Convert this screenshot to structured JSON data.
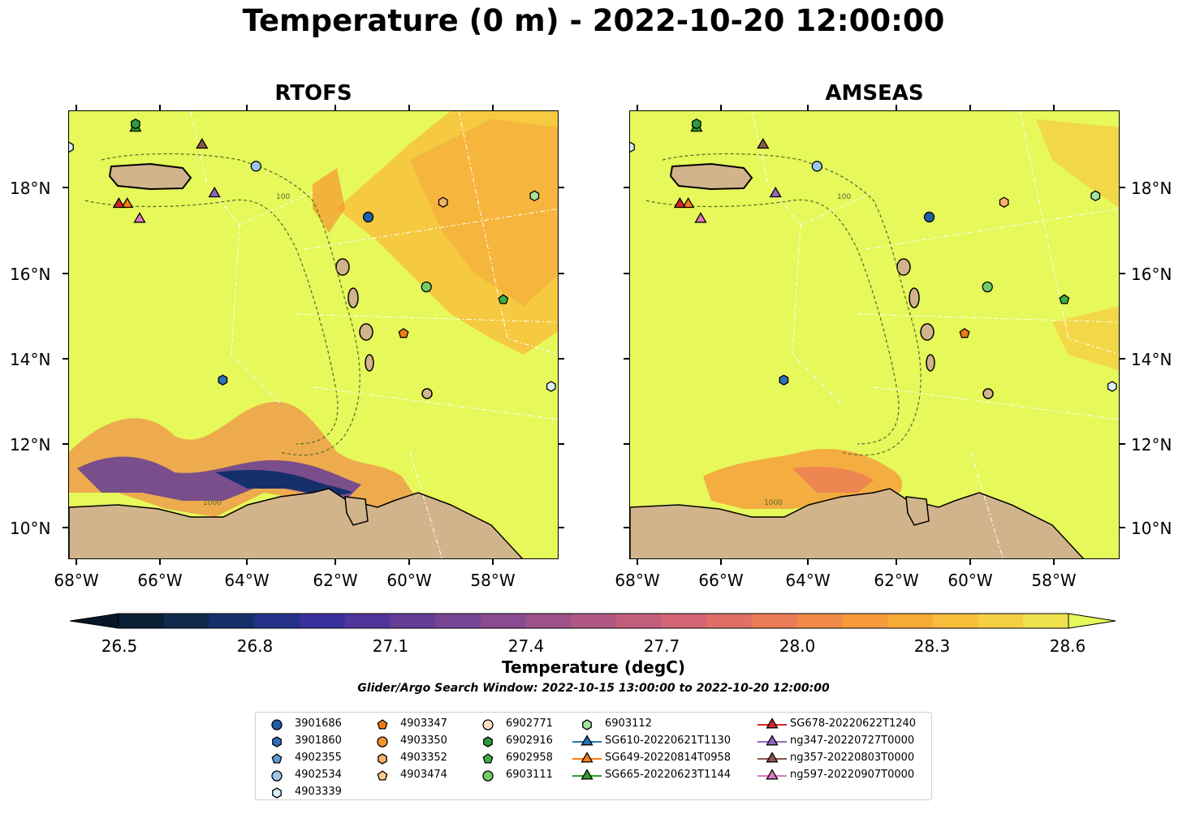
{
  "title": "Temperature (0 m) - 2022-10-20 12:00:00",
  "panels": [
    {
      "title": "RTOFS"
    },
    {
      "title": "AMSEAS"
    }
  ],
  "lat_labels": [
    "18°N",
    "16°N",
    "14°N",
    "12°N",
    "10°N"
  ],
  "lon_labels": [
    "68°W",
    "66°W",
    "64°W",
    "62°W",
    "60°W",
    "58°W"
  ],
  "contour_labels": [
    "100",
    "1000"
  ],
  "colorbar": {
    "label": "Temperature (degC)",
    "ticks": [
      "26.5",
      "26.8",
      "27.1",
      "27.4",
      "27.7",
      "28.0",
      "28.3",
      "28.6"
    ],
    "min": 26.5,
    "max": 28.6,
    "colors": [
      "#0a1f33",
      "#0f2a4c",
      "#152f6b",
      "#24328a",
      "#3a319e",
      "#50359c",
      "#643d96",
      "#774593",
      "#8a4b90",
      "#9d518a",
      "#b05783",
      "#c25d7c",
      "#d46574",
      "#e26f66",
      "#ec7c56",
      "#f28a47",
      "#f69a3c",
      "#f8ab37",
      "#f8bd3a",
      "#f5cf42",
      "#f0e24f"
    ],
    "extend_low": "#061626",
    "extend_high": "#e6f85a"
  },
  "search_window": "Glider/Argo Search Window: 2022-10-15 13:00:00 to 2022-10-20 12:00:00",
  "legend": {
    "columns": [
      [
        {
          "label": "3901686",
          "marker": "circle",
          "color": "#1f5fa8"
        },
        {
          "label": "3901860",
          "marker": "hexagon",
          "color": "#2f6fb8"
        },
        {
          "label": "4902355",
          "marker": "pentagon",
          "color": "#5b9bd5"
        },
        {
          "label": "4902534",
          "marker": "circle",
          "color": "#9cc7ec"
        },
        {
          "label": "4903339",
          "marker": "hexagon",
          "color": "#d8eefc"
        }
      ],
      [
        {
          "label": "4903347",
          "marker": "pentagon",
          "color": "#f07c17"
        },
        {
          "label": "4903350",
          "marker": "circle",
          "color": "#f5952d"
        },
        {
          "label": "4903352",
          "marker": "hexagon",
          "color": "#f8b26a"
        },
        {
          "label": "4903474",
          "marker": "pentagon",
          "color": "#fcc892"
        }
      ],
      [
        {
          "label": "6902771",
          "marker": "circle",
          "color": "#fde0c2"
        },
        {
          "label": "6902916",
          "marker": "hexagon",
          "color": "#2f9a3a"
        },
        {
          "label": "6902958",
          "marker": "pentagon",
          "color": "#3fae45"
        },
        {
          "label": "6903111",
          "marker": "circle",
          "color": "#72cc6a"
        }
      ],
      [
        {
          "label": "6903112",
          "marker": "hexagon",
          "color": "#a3e39c"
        },
        {
          "label": "SG610-20220621T1130",
          "marker": "triangle-line",
          "color": "#1f77b4"
        },
        {
          "label": "SG649-20220814T0958",
          "marker": "triangle-line",
          "color": "#ff7f0e"
        },
        {
          "label": "SG665-20220623T1144",
          "marker": "triangle-line",
          "color": "#2ca02c"
        }
      ],
      [
        {
          "label": "SG678-20220622T1240",
          "marker": "triangle-line",
          "color": "#d62728"
        },
        {
          "label": "ng347-20220727T0000",
          "marker": "triangle-line",
          "color": "#9467bd"
        },
        {
          "label": "ng357-20220803T0000",
          "marker": "triangle-line",
          "color": "#8c564b"
        },
        {
          "label": "ng597-20220907T0000",
          "marker": "triangle-line",
          "color": "#e377c2"
        }
      ]
    ]
  },
  "markers": [
    {
      "id": "4903339",
      "marker": "hexagon",
      "color": "#d8eefc",
      "lon": -68.2,
      "lat": 18.95
    },
    {
      "id": "SG665-20220623T1144",
      "marker": "triangle",
      "color": "#2ca02c",
      "lon": -66.6,
      "lat": 19.4
    },
    {
      "id": "6902916",
      "marker": "hexagon",
      "color": "#2f9a3a",
      "lon": -66.6,
      "lat": 19.5
    },
    {
      "id": "ng357-20220803T0000",
      "marker": "triangle",
      "color": "#8c564b",
      "lon": -65.0,
      "lat": 19.0
    },
    {
      "id": "4902534",
      "marker": "circle",
      "color": "#9cc7ec",
      "lon": -63.7,
      "lat": 18.5
    },
    {
      "id": "ng347-20220727T0000",
      "marker": "triangle",
      "color": "#9467bd",
      "lon": -64.7,
      "lat": 17.85
    },
    {
      "id": "SG649-20220814T0958",
      "marker": "triangle",
      "color": "#ff7f0e",
      "lon": -66.8,
      "lat": 17.6
    },
    {
      "id": "SG678-20220622T1240",
      "marker": "triangle",
      "color": "#d62728",
      "lon": -67.0,
      "lat": 17.6
    },
    {
      "id": "ng597-20220907T0000",
      "marker": "triangle",
      "color": "#e377c2",
      "lon": -66.5,
      "lat": 17.25
    },
    {
      "id": "3901686",
      "marker": "circle",
      "color": "#1f5fa8",
      "lon": -61.0,
      "lat": 17.3
    },
    {
      "id": "4903352",
      "marker": "hexagon",
      "color": "#f8b26a",
      "lon": -59.2,
      "lat": 17.65
    },
    {
      "id": "6903112",
      "marker": "hexagon",
      "color": "#a3e39c",
      "lon": -57.0,
      "lat": 17.8
    },
    {
      "id": "6903111",
      "marker": "circle",
      "color": "#72cc6a",
      "lon": -59.6,
      "lat": 15.65
    },
    {
      "id": "6902958",
      "marker": "pentagon",
      "color": "#3fae45",
      "lon": -57.75,
      "lat": 15.35
    },
    {
      "id": "4903347",
      "marker": "pentagon",
      "color": "#f07c17",
      "lon": -60.15,
      "lat": 14.55
    },
    {
      "id": "3901860",
      "marker": "hexagon",
      "color": "#2f6fb8",
      "lon": -64.5,
      "lat": 13.45
    },
    {
      "id": "4903339b",
      "marker": "hexagon",
      "color": "#d8eefc",
      "lon": -56.6,
      "lat": 13.3
    }
  ]
}
